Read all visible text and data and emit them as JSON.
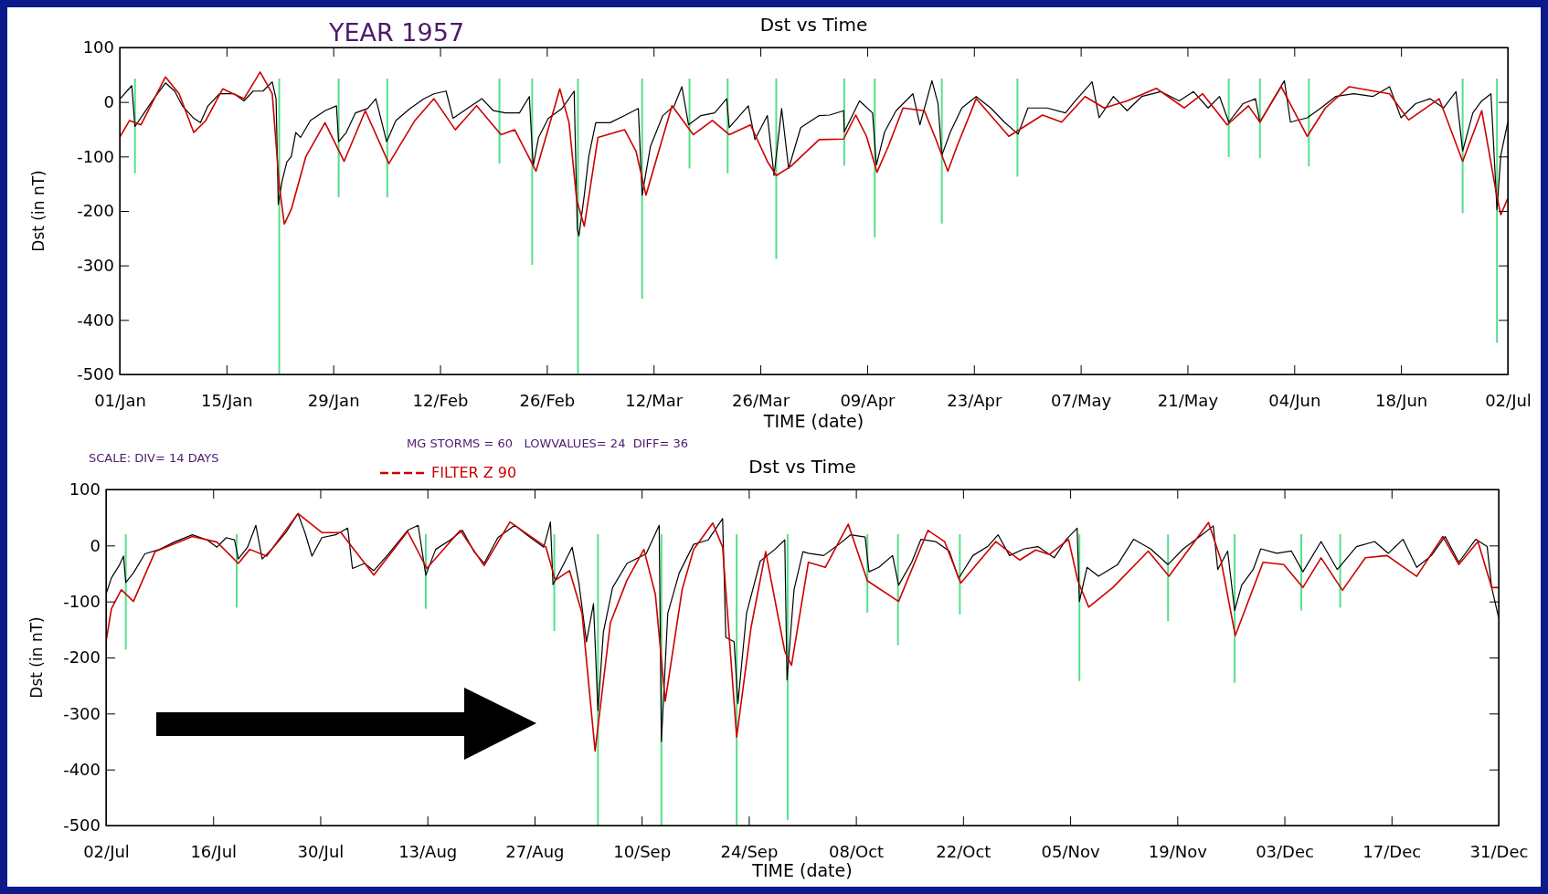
{
  "chart_data": [
    {
      "type": "line",
      "title": "Dst vs Time",
      "xlabel": "TIME (date)",
      "ylabel": "Dst (in nT)",
      "annotations": [
        "YEAR 1957"
      ],
      "xlim": [
        "1957-01-01",
        "1957-07-02"
      ],
      "xticks": [
        {
          "value": "1957-01-01",
          "label": "01/Jan"
        },
        {
          "value": "1957-01-15",
          "label": "15/Jan"
        },
        {
          "value": "1957-01-29",
          "label": "29/Jan"
        },
        {
          "value": "1957-02-12",
          "label": "12/Feb"
        },
        {
          "value": "1957-02-26",
          "label": "26/Feb"
        },
        {
          "value": "1957-03-12",
          "label": "12/Mar"
        },
        {
          "value": "1957-03-26",
          "label": "26/Mar"
        },
        {
          "value": "1957-04-09",
          "label": "09/Apr"
        },
        {
          "value": "1957-04-23",
          "label": "23/Apr"
        },
        {
          "value": "1957-05-07",
          "label": "07/May"
        },
        {
          "value": "1957-05-21",
          "label": "21/May"
        },
        {
          "value": "1957-06-04",
          "label": "04/Jun"
        },
        {
          "value": "1957-06-18",
          "label": "18/Jun"
        },
        {
          "value": "1957-07-02",
          "label": "02/Jul"
        }
      ],
      "ylim": [
        -500,
        100
      ],
      "yticks": [
        -500,
        -400,
        -300,
        -200,
        -100,
        0,
        100
      ],
      "series": [
        {
          "color": "#000000",
          "x": [
            "1957-01-01T00:00",
            "1957-01-02T14:00",
            "1957-01-03T00:00",
            "1957-01-04T05:00",
            "1957-01-05T10:00",
            "1957-01-07T00:00",
            "1957-01-08T05:00",
            "1957-01-09T05:00",
            "1957-01-10T17:00",
            "1957-01-11T14:00",
            "1957-01-12T14:00",
            "1957-01-14T02:00",
            "1957-01-16T00:00",
            "1957-01-17T07:00",
            "1957-01-18T12:00",
            "1957-01-19T19:00",
            "1957-01-21T00:00",
            "1957-01-21T12:00",
            "1957-01-21T19:00",
            "1957-01-22T07:00",
            "1957-01-22T22:00",
            "1957-01-23T12:00",
            "1957-01-24T02:00",
            "1957-01-24T17:00",
            "1957-01-26T00:00",
            "1957-01-27T22:00",
            "1957-01-29T10:00",
            "1957-01-29T17:00",
            "1957-01-30T17:00",
            "1957-01-31T22:00",
            "1957-02-02T12:00",
            "1957-02-03T14:00",
            "1957-02-05T00:00",
            "1957-02-06T05:00",
            "1957-02-08T02:00",
            "1957-02-09T22:00",
            "1957-02-11T05:00",
            "1957-02-12T19:00",
            "1957-02-13T17:00",
            "1957-02-15T14:00",
            "1957-02-17T12:00",
            "1957-02-19T00:00",
            "1957-02-20T14:00",
            "1957-02-22T10:00",
            "1957-02-23T17:00",
            "1957-02-24T05:00",
            "1957-02-24T22:00",
            "1957-02-26T05:00",
            "1957-02-28T00:00",
            "1957-03-01T14:00",
            "1957-03-02T00:00",
            "1957-03-02T05:00",
            "1957-03-02T22:00",
            "1957-03-03T12:00",
            "1957-03-04T10:00",
            "1957-03-06T07:00",
            "1957-03-08T05:00",
            "1957-03-10T00:00",
            "1957-03-10T12:00",
            "1957-03-11T14:00",
            "1957-03-13T05:00",
            "1957-03-14T17:00",
            "1957-03-15T17:00",
            "1957-03-16T14:00",
            "1957-03-18T05:00",
            "1957-03-20T00:00",
            "1957-03-21T14:00",
            "1957-03-21T22:00",
            "1957-03-24T10:00",
            "1957-03-25T07:00",
            "1957-03-26T22:00",
            "1957-03-27T19:00",
            "1957-03-28T19:00",
            "1957-03-29T17:00",
            "1957-03-31T07:00",
            "1957-04-02T17:00",
            "1957-04-04T02:00",
            "1957-04-05T22:00",
            "1957-04-06T00:00",
            "1957-04-08T00:00",
            "1957-04-09T17:00",
            "1957-04-10T05:00",
            "1957-04-11T07:00",
            "1957-04-12T19:00",
            "1957-04-15T00:00",
            "1957-04-15T22:00",
            "1957-04-17T12:00",
            "1957-04-18T07:00",
            "1957-04-18T19:00",
            "1957-04-19T22:00",
            "1957-04-21T10:00",
            "1957-04-23T07:00",
            "1957-04-25T05:00",
            "1957-04-27T00:00",
            "1957-04-28T19:00",
            "1957-04-30T02:00",
            "1957-05-02T14:00",
            "1957-05-05T00:00",
            "1957-05-06T07:00",
            "1957-05-08T12:00",
            "1957-05-09T10:00",
            "1957-05-11T07:00",
            "1957-05-13T02:00",
            "1957-05-15T00:00",
            "1957-05-17T12:00",
            "1957-05-19T22:00",
            "1957-05-21T19:00",
            "1957-05-23T17:00",
            "1957-05-25T05:00",
            "1957-05-26T10:00",
            "1957-05-28T07:00",
            "1957-05-29T22:00",
            "1957-05-30T12:00",
            "1957-06-01T07:00",
            "1957-06-02T17:00",
            "1957-06-03T12:00",
            "1957-06-05T17:00",
            "1957-06-07T12:00",
            "1957-06-09T10:00",
            "1957-06-11T19:00",
            "1957-06-14T07:00",
            "1957-06-16T12:00",
            "1957-06-18T00:00",
            "1957-06-19T22:00",
            "1957-06-21T19:00",
            "1957-06-23T14:00",
            "1957-06-25T05:00",
            "1957-06-26T02:00",
            "1957-06-27T10:00",
            "1957-06-28T14:00",
            "1957-06-29T19:00",
            "1957-06-30T14:00",
            "1957-07-01T02:00",
            "1957-07-02T00:00"
          ],
          "values": [
            5,
            30,
            -45,
            -20,
            5,
            35,
            20,
            -7,
            -30,
            -38,
            -7,
            15,
            15,
            2,
            20,
            20,
            37,
            6,
            -188,
            -145,
            -110,
            -100,
            -56,
            -65,
            -34,
            -16,
            -7,
            -73,
            -56,
            -20,
            -12,
            6,
            -73,
            -34,
            -12,
            6,
            15,
            20,
            -30,
            -12,
            6,
            -16,
            -20,
            -20,
            10,
            -118,
            -65,
            -30,
            -12,
            20,
            -233,
            -246,
            -171,
            -100,
            -38,
            -38,
            -25,
            -12,
            -171,
            -82,
            -25,
            -7,
            28,
            -42,
            -25,
            -20,
            6,
            -47,
            -7,
            -69,
            -25,
            -135,
            -12,
            -122,
            -47,
            -25,
            -24,
            -16,
            -55,
            2,
            -20,
            -116,
            -55,
            -16,
            15,
            -42,
            39,
            -3,
            -98,
            -55,
            -11,
            10,
            -11,
            -37,
            -59,
            -11,
            -11,
            -20,
            2,
            37,
            -29,
            10,
            -16,
            10,
            19,
            2,
            19,
            -11,
            10,
            -37,
            -3,
            6,
            -37,
            6,
            39,
            -37,
            -29,
            -11,
            10,
            15,
            10,
            28,
            -29,
            -3,
            6,
            -11,
            19,
            -90,
            -20,
            2,
            15,
            -198,
            -98,
            -37
          ]
        },
        {
          "color": "#cc0000",
          "x": [
            "1957-01-01T00:00",
            "1957-01-02T07:00",
            "1957-01-03T19:00",
            "1957-01-07T00:00",
            "1957-01-08T19:00",
            "1957-01-10T17:00",
            "1957-01-12T07:00",
            "1957-01-14T12:00",
            "1957-01-17T07:00",
            "1957-01-19T10:00",
            "1957-01-21T00:00",
            "1957-01-21T22:00",
            "1957-01-22T14:00",
            "1957-01-23T12:00",
            "1957-01-25T10:00",
            "1957-01-27T22:00",
            "1957-01-30T10:00",
            "1957-02-02T05:00",
            "1957-02-05T07:00",
            "1957-02-08T17:00",
            "1957-02-11T05:00",
            "1957-02-14T00:00",
            "1957-02-16T19:00",
            "1957-02-20T00:00",
            "1957-02-21T19:00",
            "1957-02-24T14:00",
            "1957-02-27T17:00",
            "1957-02-28T22:00",
            "1957-03-01T22:00",
            "1957-03-02T22:00",
            "1957-03-04T17:00",
            "1957-03-08T05:00",
            "1957-03-09T17:00",
            "1957-03-11T00:00",
            "1957-03-14T10:00",
            "1957-03-17T05:00",
            "1957-03-19T17:00",
            "1957-03-21T22:00",
            "1957-03-24T17:00",
            "1957-03-26T22:00",
            "1957-03-28T02:00",
            "1957-03-30T00:00",
            "1957-04-02T17:00",
            "1957-04-05T22:00",
            "1957-04-07T12:00",
            "1957-04-08T22:00",
            "1957-04-10T07:00",
            "1957-04-11T19:00",
            "1957-04-13T17:00",
            "1957-04-16T12:00",
            "1957-04-18T00:00",
            "1957-04-19T14:00",
            "1957-04-20T19:00",
            "1957-04-23T07:00",
            "1957-04-27T14:00",
            "1957-05-02T00:00",
            "1957-05-04T12:00",
            "1957-05-07T14:00",
            "1957-05-10T02:00",
            "1957-05-13T02:00",
            "1957-05-16T22:00",
            "1957-05-20T14:00",
            "1957-05-23T00:00",
            "1957-05-26T05:00",
            "1957-05-29T00:00",
            "1957-05-30T12:00",
            "1957-06-02T07:00",
            "1957-06-05T17:00",
            "1957-06-08T02:00",
            "1957-06-11T05:00",
            "1957-06-16T12:00",
            "1957-06-19T00:00",
            "1957-06-23T00:00",
            "1957-06-26T02:00",
            "1957-06-28T14:00",
            "1957-06-30T12:00",
            "1957-07-01T02:00",
            "1957-07-02T00:00"
          ],
          "values": [
            -65,
            -34,
            -42,
            46,
            15,
            -56,
            -34,
            24,
            6,
            55,
            15,
            -153,
            -224,
            -197,
            -100,
            -38,
            -109,
            -16,
            -113,
            -34,
            6,
            -51,
            -7,
            -60,
            -51,
            -127,
            24,
            -38,
            -180,
            -228,
            -65,
            -51,
            -91,
            -171,
            -7,
            -60,
            -34,
            -60,
            -42,
            -109,
            -135,
            -118,
            -69,
            -68,
            -24,
            -63,
            -129,
            -81,
            -11,
            -16,
            -68,
            -127,
            -81,
            6,
            -63,
            -24,
            -37,
            10,
            -11,
            2,
            25,
            -11,
            15,
            -42,
            -7,
            -37,
            28,
            -63,
            -11,
            28,
            15,
            -33,
            6,
            -109,
            -16,
            -168,
            -207,
            -177
          ]
        },
        {
          "type": "bar",
          "color": "#55e08a",
          "x": [
            "1957-01-03T00:00",
            "1957-01-21T22:00",
            "1957-01-29T17:00",
            "1957-02-05T02:00",
            "1957-02-19T19:00",
            "1957-02-24T02:00",
            "1957-03-02T02:00",
            "1957-03-10T12:00",
            "1957-03-16T17:00",
            "1957-03-21T17:00",
            "1957-03-28T02:00",
            "1957-04-06T00:00",
            "1957-04-10T00:00",
            "1957-04-18T19:00",
            "1957-04-28T17:00",
            "1957-05-26T10:00",
            "1957-05-30T12:00",
            "1957-06-05T22:00",
            "1957-06-26T02:00",
            "1957-06-30T14:00"
          ],
          "base": [
            -131,
            -500,
            -175,
            -175,
            -113,
            -299,
            -500,
            -361,
            -122,
            -131,
            -288,
            -117,
            -249,
            -223,
            -137,
            -101,
            -103,
            -118,
            -204,
            -442
          ],
          "values": [
            174,
            543,
            218,
            218,
            156,
            342,
            543,
            404,
            165,
            174,
            331,
            160,
            292,
            266,
            180,
            144,
            146,
            161,
            247,
            485
          ]
        }
      ]
    },
    {
      "type": "line",
      "title": "Dst vs Time",
      "xlabel": "TIME (date)",
      "ylabel": "Dst (in nT)",
      "legend": "top left",
      "annotations": [
        "MG STORMS = 60   LOWVALUES= 24  DIFF= 36",
        "SCALE: DIV= 14 DAYS"
      ],
      "xlim": [
        "1957-07-02",
        "1957-12-31"
      ],
      "xticks": [
        {
          "value": "1957-07-02",
          "label": "02/Jul"
        },
        {
          "value": "1957-07-16",
          "label": "16/Jul"
        },
        {
          "value": "1957-07-30",
          "label": "30/Jul"
        },
        {
          "value": "1957-08-13",
          "label": "13/Aug"
        },
        {
          "value": "1957-08-27",
          "label": "27/Aug"
        },
        {
          "value": "1957-09-10",
          "label": "10/Sep"
        },
        {
          "value": "1957-09-24",
          "label": "24/Sep"
        },
        {
          "value": "1957-10-08",
          "label": "08/Oct"
        },
        {
          "value": "1957-10-22",
          "label": "22/Oct"
        },
        {
          "value": "1957-11-05",
          "label": "05/Nov"
        },
        {
          "value": "1957-11-19",
          "label": "19/Nov"
        },
        {
          "value": "1957-12-03",
          "label": "03/Dec"
        },
        {
          "value": "1957-12-17",
          "label": "17/Dec"
        },
        {
          "value": "1957-12-31",
          "label": "31/Dec"
        }
      ],
      "ylim": [
        -500,
        100
      ],
      "yticks": [
        -500,
        -400,
        -300,
        -200,
        -100,
        0,
        100
      ],
      "series": [
        {
          "color": "#000000",
          "x": [
            "1957-07-02T00:00",
            "1957-07-02T17:00",
            "1957-07-03T17:00",
            "1957-07-04T07:00",
            "1957-07-04T14:00",
            "1957-07-05T14:00",
            "1957-07-07T02:00",
            "1957-07-09T00:00",
            "1957-07-10T22:00",
            "1957-07-13T07:00",
            "1957-07-15T05:00",
            "1957-07-16T12:00",
            "1957-07-17T17:00",
            "1957-07-18T19:00",
            "1957-07-19T07:00",
            "1957-07-20T12:00",
            "1957-07-21T14:00",
            "1957-07-22T10:00",
            "1957-07-23T22:00",
            "1957-07-25T12:00",
            "1957-07-27T02:00",
            "1957-07-28T00:00",
            "1957-07-28T22:00",
            "1957-07-30T05:00",
            "1957-08-01T00:00",
            "1957-08-02T14:00",
            "1957-08-03T05:00",
            "1957-08-04T19:00",
            "1957-08-06T00:00",
            "1957-08-07T22:00",
            "1957-08-10T10:00",
            "1957-08-11T19:00",
            "1957-08-12T19:00",
            "1957-08-14T02:00",
            "1957-08-16T00:00",
            "1957-08-17T14:00",
            "1957-08-19T02:00",
            "1957-08-20T10:00",
            "1957-08-22T05:00",
            "1957-08-24T10:00",
            "1957-08-26T00:00",
            "1957-08-28T05:00",
            "1957-08-29T02:00",
            "1957-08-29T10:00",
            "1957-08-30T17:00",
            "1957-08-31T22:00",
            "1957-09-01T19:00",
            "1957-09-02T19:00",
            "1957-09-03T17:00",
            "1957-09-04T07:00",
            "1957-09-05T00:00",
            "1957-09-06T05:00",
            "1957-09-08T02:00",
            "1957-09-10T14:00",
            "1957-09-12T07:00",
            "1957-09-12T14:00",
            "1957-09-13T10:00",
            "1957-09-14T22:00",
            "1957-09-16T19:00",
            "1957-09-18T17:00",
            "1957-09-20T14:00",
            "1957-09-21T00:00",
            "1957-09-22T02:00",
            "1957-09-22T14:00",
            "1957-09-23T17:00",
            "1957-09-25T12:00",
            "1957-09-27T10:00",
            "1957-09-28T17:00",
            "1957-09-29T00:00",
            "1957-09-29T22:00",
            "1957-10-01T02:00",
            "1957-10-01T19:00",
            "1957-10-03T19:00",
            "1957-10-05T19:00",
            "1957-10-07T07:00",
            "1957-10-09T05:00",
            "1957-10-09T17:00",
            "1957-10-11T00:00",
            "1957-10-12T19:00",
            "1957-10-13T14:00",
            "1957-10-15T07:00",
            "1957-10-16T12:00",
            "1957-10-18T10:00",
            "1957-10-20T05:00",
            "1957-10-21T10:00",
            "1957-10-23T07:00",
            "1957-10-25T05:00",
            "1957-10-26T14:00",
            "1957-10-28T02:00",
            "1957-10-30T00:00",
            "1957-10-31T19:00",
            "1957-11-02T22:00",
            "1957-11-04T12:00",
            "1957-11-05T22:00",
            "1957-11-06T05:00",
            "1957-11-07T05:00",
            "1957-11-08T17:00",
            "1957-11-11T05:00",
            "1957-11-13T07:00",
            "1957-11-15T12:00",
            "1957-11-17T19:00",
            "1957-11-19T19:00",
            "1957-11-22T05:00",
            "1957-11-23T17:00",
            "1957-11-24T07:00",
            "1957-11-25T14:00",
            "1957-11-26T12:00",
            "1957-11-27T10:00",
            "1957-11-28T22:00",
            "1957-11-29T22:00",
            "1957-12-02T00:00",
            "1957-12-03T22:00",
            "1957-12-05T10:00",
            "1957-12-07T19:00",
            "1957-12-09T22:00",
            "1957-12-12T10:00",
            "1957-12-14T19:00",
            "1957-12-16T14:00",
            "1957-12-18T12:00",
            "1957-12-20T07:00",
            "1957-12-22T05:00",
            "1957-12-24T00:00",
            "1957-12-25T19:00",
            "1957-12-28T00:00",
            "1957-12-29T12:00",
            "1957-12-30T02:00",
            "1957-12-31T00:00"
          ],
          "values": [
            -87,
            -58,
            -36,
            -19,
            -66,
            -49,
            -15,
            -7,
            6,
            19,
            10,
            -3,
            14,
            10,
            -24,
            -3,
            36,
            -24,
            -3,
            23,
            57,
            23,
            -19,
            14,
            19,
            31,
            -41,
            -32,
            -45,
            -15,
            27,
            36,
            -53,
            -7,
            10,
            27,
            -11,
            -32,
            14,
            36,
            19,
            -3,
            42,
            -70,
            -36,
            -3,
            -66,
            -172,
            -104,
            -295,
            -155,
            -75,
            -32,
            -15,
            36,
            -350,
            -121,
            -49,
            2,
            10,
            48,
            -164,
            -172,
            -282,
            -121,
            -28,
            -7,
            10,
            -240,
            -79,
            -11,
            -14,
            -18,
            2,
            19,
            15,
            -47,
            -39,
            -18,
            -71,
            -30,
            11,
            7,
            -10,
            -59,
            -18,
            -2,
            19,
            -18,
            -6,
            -2,
            -22,
            11,
            31,
            -100,
            -39,
            -55,
            -34,
            11,
            -6,
            -34,
            -6,
            19,
            35,
            -43,
            -10,
            -116,
            -71,
            -43,
            -6,
            -14,
            -10,
            -47,
            7,
            -43,
            -2,
            7,
            -14,
            11,
            -39,
            -18,
            16,
            -30,
            11,
            -2,
            -75,
            -129
          ]
        },
        {
          "name": "FILTER Z 90",
          "color": "#cc0000",
          "x": [
            "1957-07-02T00:00",
            "1957-07-02T17:00",
            "1957-07-04T00:00",
            "1957-07-05T14:00",
            "1957-07-08T10:00",
            "1957-07-13T07:00",
            "1957-07-16T12:00",
            "1957-07-19T07:00",
            "1957-07-20T19:00",
            "1957-07-23T00:00",
            "1957-07-27T02:00",
            "1957-07-30T05:00",
            "1957-08-01T17:00",
            "1957-08-06T00:00",
            "1957-08-10T10:00",
            "1957-08-12T22:00",
            "1957-08-17T07:00",
            "1957-08-20T10:00",
            "1957-08-23T19:00",
            "1957-08-28T12:00",
            "1957-08-29T17:00",
            "1957-08-31T14:00",
            "1957-09-02T05:00",
            "1957-09-03T22:00",
            "1957-09-05T22:00",
            "1957-09-08T02:00",
            "1957-09-10T07:00",
            "1957-09-11T19:00",
            "1957-09-13T02:00",
            "1957-09-15T07:00",
            "1957-09-16T19:00",
            "1957-09-19T07:00",
            "1957-09-20T14:00",
            "1957-09-22T10:00",
            "1957-09-24T07:00",
            "1957-09-26T05:00",
            "1957-09-28T17:00",
            "1957-09-29T14:00",
            "1957-10-01T19:00",
            "1957-10-04T00:00",
            "1957-10-07T00:00",
            "1957-10-09T12:00",
            "1957-10-13T14:00",
            "1957-10-17T10:00",
            "1957-10-19T14:00",
            "1957-10-21T17:00",
            "1957-10-26T07:00",
            "1957-10-29T10:00",
            "1957-10-31T12:00",
            "1957-11-02T07:00",
            "1957-11-04T19:00",
            "1957-11-06T00:00",
            "1957-11-07T10:00",
            "1957-11-10T14:00",
            "1957-11-15T05:00",
            "1957-11-17T22:00",
            "1957-11-23T02:00",
            "1957-11-24T17:00",
            "1957-11-26T14:00",
            "1957-11-30T05:00",
            "1957-12-02T22:00",
            "1957-12-05T10:00",
            "1957-12-07T19:00",
            "1957-12-10T14:00",
            "1957-12-13T14:00",
            "1957-12-16T10:00",
            "1957-12-20T07:00",
            "1957-12-23T17:00",
            "1957-12-25T19:00",
            "1957-12-28T07:00",
            "1957-12-30T02:00",
            "1957-12-31T00:00"
          ],
          "values": [
            -172,
            -113,
            -79,
            -100,
            -11,
            16,
            6,
            -32,
            -7,
            -19,
            57,
            23,
            23,
            -53,
            25,
            -41,
            27,
            -36,
            42,
            -3,
            -62,
            -45,
            -121,
            -367,
            -138,
            -62,
            -7,
            -87,
            -278,
            -79,
            -7,
            40,
            -3,
            -342,
            -147,
            -11,
            -189,
            -214,
            -30,
            -39,
            38,
            -63,
            -100,
            27,
            7,
            -67,
            7,
            -26,
            -8,
            -16,
            11,
            -63,
            -110,
            -75,
            -10,
            -55,
            41,
            -26,
            -161,
            -30,
            -34,
            -75,
            -22,
            -80,
            -22,
            -18,
            -55,
            16,
            -34,
            7,
            -75,
            -75
          ]
        },
        {
          "type": "bar",
          "color": "#55e08a",
          "x": [
            "1957-07-04T14:00",
            "1957-07-19T02:00",
            "1957-08-12T19:00",
            "1957-08-29T14:00",
            "1957-09-04T07:00",
            "1957-09-12T14:00",
            "1957-09-22T10:00",
            "1957-09-29T02:00",
            "1957-10-09T12:00",
            "1957-10-13T12:00",
            "1957-10-21T14:00",
            "1957-11-06T05:00",
            "1957-11-17T19:00",
            "1957-11-26T12:00",
            "1957-12-05T05:00",
            "1957-12-10T07:00"
          ],
          "base": [
            -186,
            -111,
            -113,
            -153,
            -500,
            -500,
            -500,
            -490,
            -120,
            -178,
            -123,
            -242,
            -135,
            -245,
            -116,
            -111
          ],
          "values": [
            206,
            131,
            133,
            173,
            520,
            520,
            520,
            510,
            140,
            198,
            143,
            262,
            155,
            265,
            136,
            131
          ]
        }
      ]
    }
  ]
}
